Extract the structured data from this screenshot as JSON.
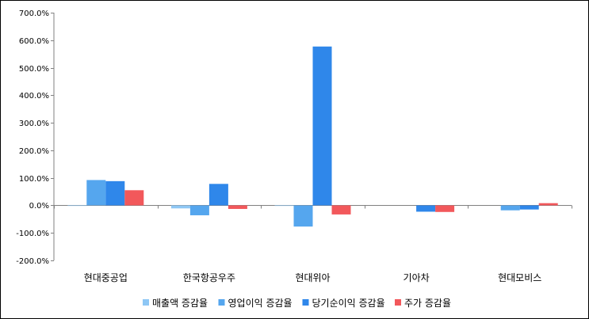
{
  "chart_data": {
    "type": "bar",
    "title": "",
    "xlabel": "",
    "ylabel": "",
    "categories": [
      "현대중공업",
      "한국항공우주",
      "현대위아",
      "기아차",
      "현대모비스"
    ],
    "series": [
      {
        "name": "매출액 증감율",
        "color": "#8ec7f5",
        "values": [
          -2.0,
          -11.0,
          -2.0,
          0.0,
          0.0
        ]
      },
      {
        "name": "영업이익 증감율",
        "color": "#55a6ee",
        "values": [
          92.0,
          -36.0,
          -77.0,
          0.0,
          -18.0
        ]
      },
      {
        "name": "당기순이익 증감율",
        "color": "#2f87ea",
        "values": [
          88.0,
          78.0,
          577.0,
          -23.0,
          -15.0
        ]
      },
      {
        "name": "주가 증감율",
        "color": "#f2585b",
        "values": [
          55.0,
          -13.0,
          -33.0,
          -24.0,
          8.0
        ]
      }
    ],
    "ylim": [
      -200,
      700
    ],
    "yticks": [
      -200,
      -100,
      0,
      100,
      200,
      300,
      400,
      500,
      600,
      700
    ],
    "ytick_labels": [
      "-200.0%",
      "-100.0%",
      "0.0%",
      "100.0%",
      "200.0%",
      "300.0%",
      "400.0%",
      "500.0%",
      "600.0%",
      "700.0%"
    ],
    "grid": false,
    "legend_position": "bottom"
  }
}
